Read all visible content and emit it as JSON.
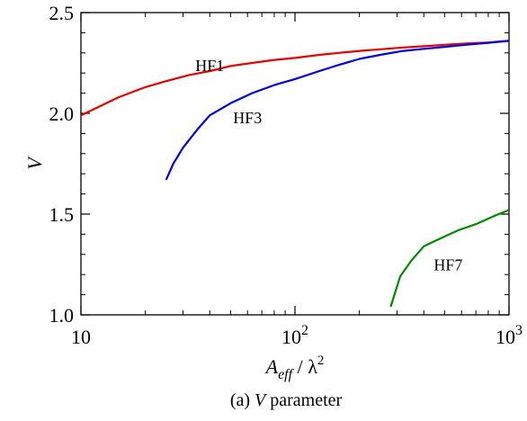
{
  "chart_data": {
    "type": "line",
    "xscale": "log",
    "xlim": [
      10,
      1000
    ],
    "ylim": [
      1.0,
      2.5
    ],
    "xticks": [
      {
        "value": 10,
        "base": "10",
        "exp": ""
      },
      {
        "value": 100,
        "base": "10",
        "exp": "2"
      },
      {
        "value": 1000,
        "base": "10",
        "exp": "3"
      }
    ],
    "yticks": [
      {
        "value": 1.0,
        "label": "1.0"
      },
      {
        "value": 1.5,
        "label": "1.5"
      },
      {
        "value": 2.0,
        "label": "2.0"
      },
      {
        "value": 2.5,
        "label": "2.5"
      }
    ],
    "ylabel": "V",
    "xlabel": {
      "main": "A",
      "subscript": "eff",
      "separator": "/",
      "denominator": "λ",
      "power": "2"
    },
    "caption": {
      "prefix": "(a)",
      "symbol": "V",
      "text": "parameter"
    },
    "series": [
      {
        "name": "HF1",
        "color": "#e60000",
        "x": [
          10,
          12,
          15,
          20,
          25,
          32,
          40,
          50,
          63,
          80,
          100,
          130,
          160,
          200,
          250,
          320,
          400,
          500,
          630,
          800,
          1000
        ],
        "y": [
          1.99,
          2.03,
          2.08,
          2.13,
          2.16,
          2.19,
          2.21,
          2.235,
          2.25,
          2.265,
          2.275,
          2.29,
          2.3,
          2.31,
          2.318,
          2.327,
          2.333,
          2.34,
          2.347,
          2.352,
          2.36
        ]
      },
      {
        "name": "HF3",
        "color": "#0000dd",
        "x": [
          25,
          27,
          30,
          35,
          40,
          50,
          63,
          80,
          100,
          130,
          160,
          200,
          250,
          320,
          400,
          500,
          630,
          800,
          1000
        ],
        "y": [
          1.67,
          1.75,
          1.83,
          1.92,
          1.99,
          2.05,
          2.1,
          2.14,
          2.17,
          2.21,
          2.24,
          2.27,
          2.29,
          2.31,
          2.32,
          2.33,
          2.34,
          2.35,
          2.36
        ]
      },
      {
        "name": "HF7",
        "color": "#008a00",
        "x": [
          280,
          310,
          350,
          400,
          480,
          580,
          700,
          850,
          1000
        ],
        "y": [
          1.04,
          1.19,
          1.27,
          1.34,
          1.38,
          1.42,
          1.45,
          1.49,
          1.52
        ]
      }
    ]
  }
}
